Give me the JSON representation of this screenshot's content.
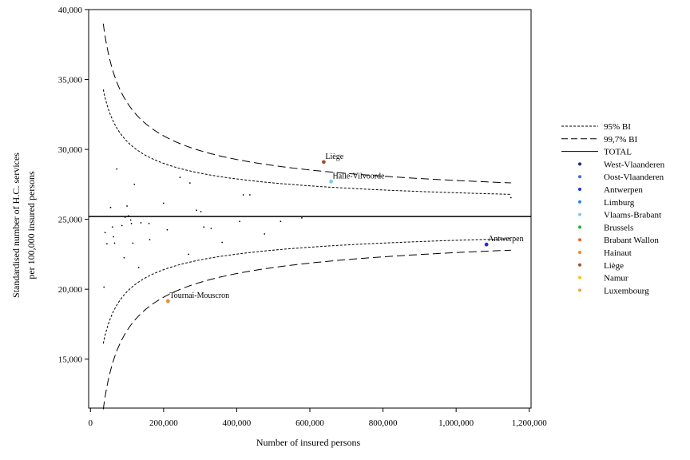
{
  "chart_data": {
    "type": "scatter",
    "title": "",
    "xlabel": "Number of insured persons",
    "ylabel_lines": [
      "Standardised number of H.C. services",
      "per 100,000 insured persons"
    ],
    "xlim": [
      -5000,
      1205000
    ],
    "ylim": [
      11500,
      40000
    ],
    "x_ticks": [
      0,
      200000,
      400000,
      600000,
      800000,
      1000000,
      1200000
    ],
    "x_tick_labels": [
      "0",
      "200,000",
      "400,000",
      "600,000",
      "800,000",
      "1,000,000",
      "1,200,000"
    ],
    "y_ticks": [
      15000,
      20000,
      25000,
      30000,
      35000,
      40000
    ],
    "y_tick_labels": [
      "15,000",
      "20,000",
      "25,000",
      "30,000",
      "35,000",
      "40,000"
    ],
    "grid": false,
    "legend_position": "right",
    "total_level": 25200,
    "funnel": {
      "min_x": 35000,
      "max_x": 1150000,
      "inner_k": 1700000.0,
      "outer_k": 2580000.0
    },
    "legend": [
      {
        "label": "95% BI",
        "style": "dotted"
      },
      {
        "label": "99,7% BI",
        "style": "dashed"
      },
      {
        "label": "TOTAL",
        "style": "solid"
      },
      {
        "label": "West-Vlaanderen",
        "color": "#1a237e"
      },
      {
        "label": "Oost-Vlaanderen",
        "color": "#3f6fd8"
      },
      {
        "label": "Antwerpen",
        "color": "#1f2fe0"
      },
      {
        "label": "Limburg",
        "color": "#2e86de"
      },
      {
        "label": "Vlaams-Brabant",
        "color": "#7ec8f2"
      },
      {
        "label": "Brussels",
        "color": "#2eaa3f"
      },
      {
        "label": "Brabant Wallon",
        "color": "#e06a2c"
      },
      {
        "label": "Hainaut",
        "color": "#f08a2a"
      },
      {
        "label": "Liège",
        "color": "#a0522d"
      },
      {
        "label": "Namur",
        "color": "#f7c21a"
      },
      {
        "label": "Luxembourg",
        "color": "#f2a33a"
      }
    ],
    "highlighted_points": [
      {
        "label": "Liège",
        "x": 638000,
        "y": 29100,
        "color": "#a0522d"
      },
      {
        "label": "Halle-Vilvoorde",
        "x": 658000,
        "y": 27700,
        "color": "#7ec8f2"
      },
      {
        "label": "Antwerpen",
        "x": 1083000,
        "y": 23200,
        "color": "#1f2fe0"
      },
      {
        "label": "Tournai-Mouscron",
        "x": 212000,
        "y": 19150,
        "color": "#f08a2a"
      }
    ],
    "points": [
      [
        37000,
        20150
      ],
      [
        40000,
        24050
      ],
      [
        45000,
        23250
      ],
      [
        55000,
        25850
      ],
      [
        60000,
        24450
      ],
      [
        63000,
        23750
      ],
      [
        66000,
        23300
      ],
      [
        72000,
        28600
      ],
      [
        86000,
        24550
      ],
      [
        92000,
        22250
      ],
      [
        95000,
        25150
      ],
      [
        100000,
        25950
      ],
      [
        104000,
        25250
      ],
      [
        110000,
        24950
      ],
      [
        112000,
        24700
      ],
      [
        116000,
        23300
      ],
      [
        120000,
        27500
      ],
      [
        132000,
        21550
      ],
      [
        138000,
        24750
      ],
      [
        160000,
        24700
      ],
      [
        162000,
        23550
      ],
      [
        200000,
        26150
      ],
      [
        210000,
        24250
      ],
      [
        245000,
        28000
      ],
      [
        268000,
        22500
      ],
      [
        272000,
        27600
      ],
      [
        290000,
        25650
      ],
      [
        302000,
        25550
      ],
      [
        310000,
        24450
      ],
      [
        330000,
        24350
      ],
      [
        360000,
        23350
      ],
      [
        408000,
        24850
      ],
      [
        418000,
        26750
      ],
      [
        436000,
        26750
      ],
      [
        476000,
        23950
      ],
      [
        520000,
        24850
      ],
      [
        578000,
        25100
      ],
      [
        1150000,
        26550
      ]
    ]
  }
}
